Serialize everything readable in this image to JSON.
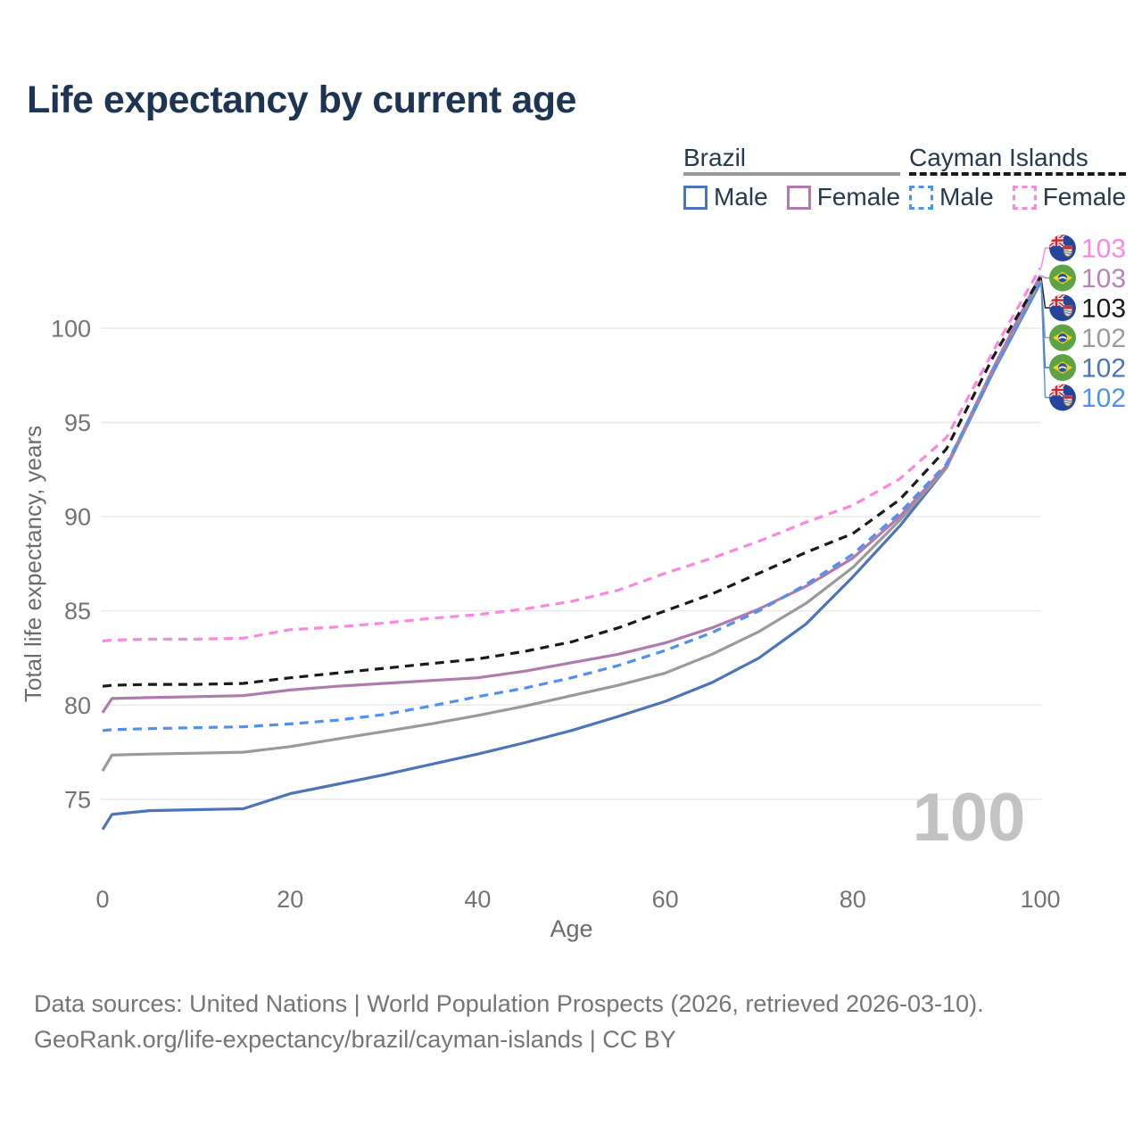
{
  "title": "Life expectancy by current age",
  "watermark": "100",
  "legend": {
    "groups": [
      {
        "label": "Brazil",
        "underline_style": "solid",
        "underline_color": "#9a9a9a",
        "items": [
          {
            "label": "Male",
            "series_index": 5
          },
          {
            "label": "Female",
            "series_index": 2
          }
        ]
      },
      {
        "label": "Cayman Islands",
        "underline_style": "dashed",
        "underline_color": "#1a1a1a",
        "items": [
          {
            "label": "Male",
            "series_index": 3
          },
          {
            "label": "Female",
            "series_index": 0
          }
        ]
      }
    ]
  },
  "footer": {
    "line1": "Data sources: United Nations | World Population Prospects (2026, retrieved 2026-03-10).",
    "line2": "GeoRank.org/life-expectancy/brazil/cayman-islands | CC BY"
  },
  "chart_data": {
    "type": "line",
    "title": "Life expectancy by current age",
    "xlabel": "Age",
    "ylabel": "Total life expectancy, years",
    "xlim": [
      0,
      100
    ],
    "ylim": [
      73,
      103.5
    ],
    "xticks": [
      0,
      20,
      40,
      60,
      80,
      100
    ],
    "yticks": [
      75,
      80,
      85,
      90,
      95,
      100
    ],
    "grid": true,
    "legend_position": "top-right",
    "x": [
      0,
      1,
      5,
      10,
      15,
      20,
      25,
      30,
      35,
      40,
      45,
      50,
      55,
      60,
      65,
      70,
      75,
      80,
      85,
      90,
      95,
      100
    ],
    "series": [
      {
        "name": "Cayman Islands Female",
        "country": "Cayman Islands",
        "sex": "Female",
        "color": "#fb87df",
        "dash": true,
        "end_label": "103",
        "values": [
          83.4,
          83.45,
          83.5,
          83.5,
          83.55,
          84.0,
          84.15,
          84.35,
          84.6,
          84.8,
          85.1,
          85.5,
          86.1,
          87.0,
          87.8,
          88.7,
          89.7,
          90.6,
          92.0,
          94.2,
          98.8,
          103.2
        ]
      },
      {
        "name": "Cayman Islands",
        "country": "Cayman Islands",
        "sex": "Both",
        "color": "#1a1a1a",
        "dash": true,
        "end_label": "103",
        "values": [
          81.0,
          81.05,
          81.1,
          81.1,
          81.15,
          81.45,
          81.7,
          81.95,
          82.2,
          82.45,
          82.85,
          83.35,
          84.1,
          85.0,
          85.9,
          87.0,
          88.1,
          89.1,
          90.9,
          93.6,
          98.5,
          102.7
        ]
      },
      {
        "name": "Brazil Female",
        "country": "Brazil",
        "sex": "Female",
        "color": "#b07aae",
        "dash": false,
        "end_label": "103",
        "values": [
          79.6,
          80.35,
          80.4,
          80.45,
          80.5,
          80.8,
          81.0,
          81.15,
          81.3,
          81.45,
          81.8,
          82.25,
          82.7,
          83.3,
          84.1,
          85.1,
          86.3,
          87.8,
          90.0,
          92.7,
          97.9,
          102.8
        ]
      },
      {
        "name": "Cayman Islands Male",
        "country": "Cayman Islands",
        "sex": "Male",
        "color": "#4f90f0",
        "dash": true,
        "end_label": "102",
        "values": [
          78.65,
          78.7,
          78.75,
          78.8,
          78.85,
          79.0,
          79.2,
          79.5,
          79.95,
          80.45,
          80.9,
          81.45,
          82.1,
          82.9,
          83.85,
          85.0,
          86.4,
          88.0,
          90.2,
          92.8,
          97.7,
          102.4
        ]
      },
      {
        "name": "Brazil",
        "country": "Brazil",
        "sex": "Both",
        "color": "#9a9a9a",
        "dash": false,
        "end_label": "102",
        "values": [
          76.5,
          77.35,
          77.4,
          77.45,
          77.5,
          77.8,
          78.2,
          78.6,
          79.0,
          79.45,
          79.95,
          80.5,
          81.05,
          81.7,
          82.7,
          83.9,
          85.4,
          87.3,
          89.8,
          92.6,
          97.8,
          102.5
        ]
      },
      {
        "name": "Brazil Male",
        "country": "Brazil",
        "sex": "Male",
        "color": "#4c74b9",
        "dash": false,
        "end_label": "102",
        "values": [
          73.4,
          74.2,
          74.4,
          74.45,
          74.5,
          75.3,
          75.8,
          76.3,
          76.85,
          77.4,
          78.0,
          78.65,
          79.4,
          80.2,
          81.2,
          82.5,
          84.3,
          86.8,
          89.5,
          92.6,
          97.7,
          102.4
        ]
      }
    ],
    "end_labels": [
      {
        "series_index": 0,
        "flag": "cayman-islands",
        "label": "103",
        "color": "#fb87df"
      },
      {
        "series_index": 2,
        "flag": "brazil",
        "label": "103",
        "color": "#b583b5"
      },
      {
        "series_index": 1,
        "flag": "cayman-islands",
        "label": "103",
        "color": "#1a1a1a"
      },
      {
        "series_index": 4,
        "flag": "brazil",
        "label": "102",
        "color": "#9a9a9a"
      },
      {
        "series_index": 5,
        "flag": "brazil",
        "label": "102",
        "color": "#4c74b9"
      },
      {
        "series_index": 3,
        "flag": "cayman-islands",
        "label": "102",
        "color": "#4f90f0"
      }
    ],
    "colors": {
      "grid": "#e8e8e8",
      "tick_text": "#737373",
      "axis_title": "#6b6b6b",
      "watermark": "#c2c2c2"
    }
  }
}
